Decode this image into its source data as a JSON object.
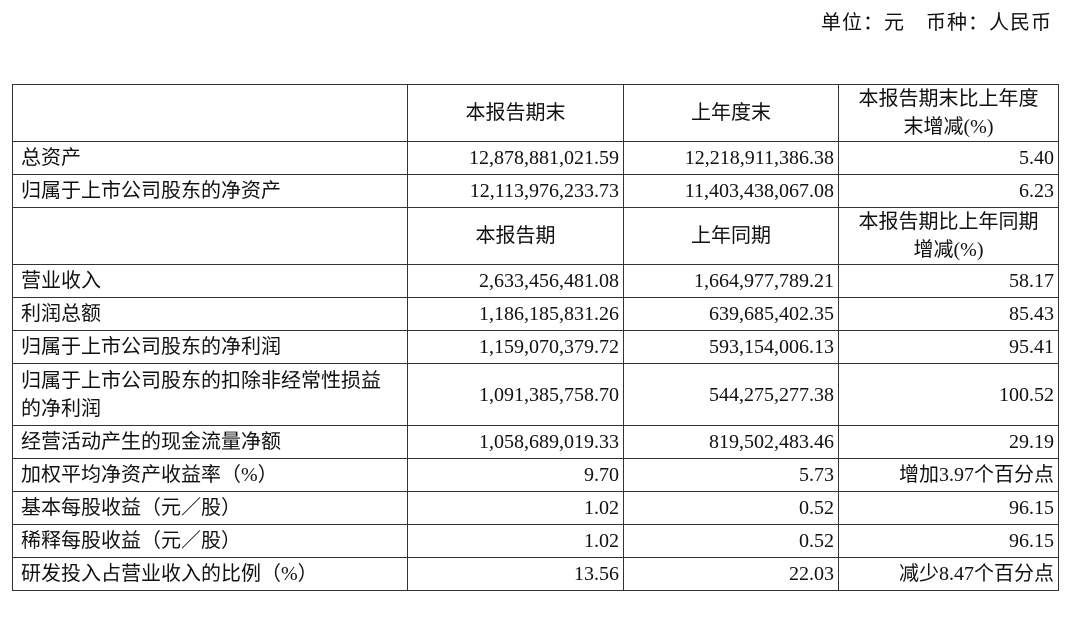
{
  "unit_note": "单位：元　币种：人民币",
  "header1": [
    "",
    "本报告期末",
    "上年度末",
    "本报告期末比上年度末增减(%)"
  ],
  "balance_rows": [
    [
      "总资产",
      "12,878,881,021.59",
      "12,218,911,386.38",
      "5.40"
    ],
    [
      "归属于上市公司股东的净资产",
      "12,113,976,233.73",
      "11,403,438,067.08",
      "6.23"
    ]
  ],
  "header2": [
    "",
    "本报告期",
    "上年同期",
    "本报告期比上年同期增减(%)"
  ],
  "income_rows": [
    [
      "营业收入",
      "2,633,456,481.08",
      "1,664,977,789.21",
      "58.17"
    ],
    [
      "利润总额",
      "1,186,185,831.26",
      "639,685,402.35",
      "85.43"
    ],
    [
      "归属于上市公司股东的净利润",
      "1,159,070,379.72",
      "593,154,006.13",
      "95.41"
    ],
    [
      "归属于上市公司股东的扣除非经常性损益的净利润",
      "1,091,385,758.70",
      "544,275,277.38",
      "100.52"
    ],
    [
      "经营活动产生的现金流量净额",
      "1,058,689,019.33",
      "819,502,483.46",
      "29.19"
    ],
    [
      "加权平均净资产收益率（%）",
      "9.70",
      "5.73",
      "增加3.97个百分点"
    ],
    [
      "基本每股收益（元／股）",
      "1.02",
      "0.52",
      "96.15"
    ],
    [
      "稀释每股收益（元／股）",
      "1.02",
      "0.52",
      "96.15"
    ],
    [
      "研发投入占营业收入的比例（%）",
      "13.56",
      "22.03",
      "减少8.47个百分点"
    ]
  ]
}
